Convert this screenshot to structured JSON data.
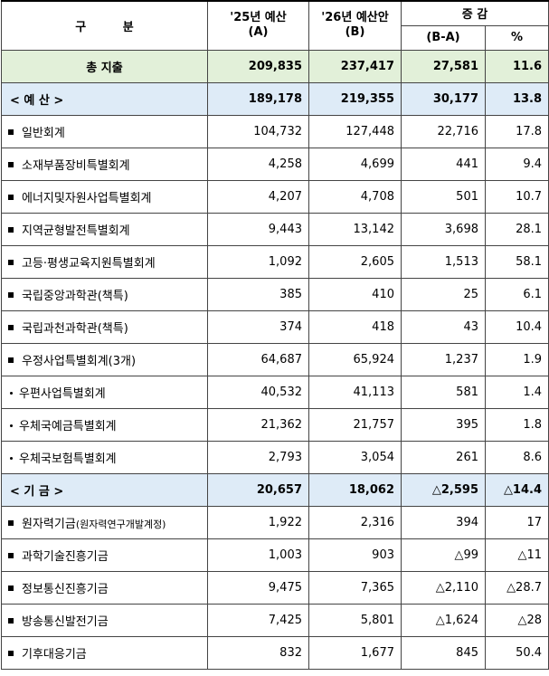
{
  "header": {
    "category": "구 분",
    "col_2025_line1": "'25년 예산",
    "col_2025_line2": "(A)",
    "col_2026_line1": "'26년 예산안",
    "col_2026_line2": "(B)",
    "change": "증 감",
    "change_amount": "(B-A)",
    "change_pct": "%"
  },
  "total": {
    "label": "총 지출",
    "a": "209,835",
    "b": "237,417",
    "diff": "27,581",
    "pct": "11.6"
  },
  "budget": {
    "label": "< 예 산 >",
    "a": "189,178",
    "b": "219,355",
    "diff": "30,177",
    "pct": "13.8",
    "items": [
      {
        "marker": "bullet",
        "name": "일반회계",
        "a": "104,732",
        "b": "127,448",
        "diff": "22,716",
        "pct": "17.8"
      },
      {
        "marker": "bullet",
        "name": "소재부품장비특별회계",
        "a": "4,258",
        "b": "4,699",
        "diff": "441",
        "pct": "9.4"
      },
      {
        "marker": "bullet",
        "name": "에너지및자원사업특별회계",
        "a": "4,207",
        "b": "4,708",
        "diff": "501",
        "pct": "10.7"
      },
      {
        "marker": "bullet",
        "name": "지역균형발전특별회계",
        "a": "9,443",
        "b": "13,142",
        "diff": "3,698",
        "pct": "28.1"
      },
      {
        "marker": "bullet",
        "name": "고등·평생교육지원특별회계",
        "a": "1,092",
        "b": "2,605",
        "diff": "1,513",
        "pct": "58.1"
      },
      {
        "marker": "bullet",
        "name": "국립중앙과학관(책특)",
        "a": "385",
        "b": "410",
        "diff": "25",
        "pct": "6.1"
      },
      {
        "marker": "bullet",
        "name": "국립과천과학관(책특)",
        "a": "374",
        "b": "418",
        "diff": "43",
        "pct": "10.4"
      },
      {
        "marker": "bullet",
        "name": "우정사업특별회계(3개)",
        "a": "64,687",
        "b": "65,924",
        "diff": "1,237",
        "pct": "1.9"
      },
      {
        "marker": "dot",
        "name": "우편사업특별회계",
        "a": "40,532",
        "b": "41,113",
        "diff": "581",
        "pct": "1.4"
      },
      {
        "marker": "dot",
        "name": "우체국예금특별회계",
        "a": "21,362",
        "b": "21,757",
        "diff": "395",
        "pct": "1.8"
      },
      {
        "marker": "dot",
        "name": "우체국보험특별회계",
        "a": "2,793",
        "b": "3,054",
        "diff": "261",
        "pct": "8.6"
      }
    ]
  },
  "funds": {
    "label": "< 기 금 >",
    "a": "20,657",
    "b": "18,062",
    "diff": "△2,595",
    "pct": "△14.4",
    "items": [
      {
        "marker": "bullet",
        "name": "원자력기금",
        "note": "(원자력연구개발계정)",
        "a": "1,922",
        "b": "2,316",
        "diff": "394",
        "pct": "17"
      },
      {
        "marker": "bullet",
        "name": "과학기술진흥기금",
        "a": "1,003",
        "b": "903",
        "diff": "△99",
        "pct": "△11"
      },
      {
        "marker": "bullet",
        "name": "정보통신진흥기금",
        "a": "9,475",
        "b": "7,365",
        "diff": "△2,110",
        "pct": "△28.7"
      },
      {
        "marker": "bullet",
        "name": "방송통신발전기금",
        "a": "7,425",
        "b": "5,801",
        "diff": "△1,624",
        "pct": "△28"
      },
      {
        "marker": "bullet",
        "name": "기후대응기금",
        "a": "832",
        "b": "1,677",
        "diff": "845",
        "pct": "50.4"
      }
    ]
  }
}
